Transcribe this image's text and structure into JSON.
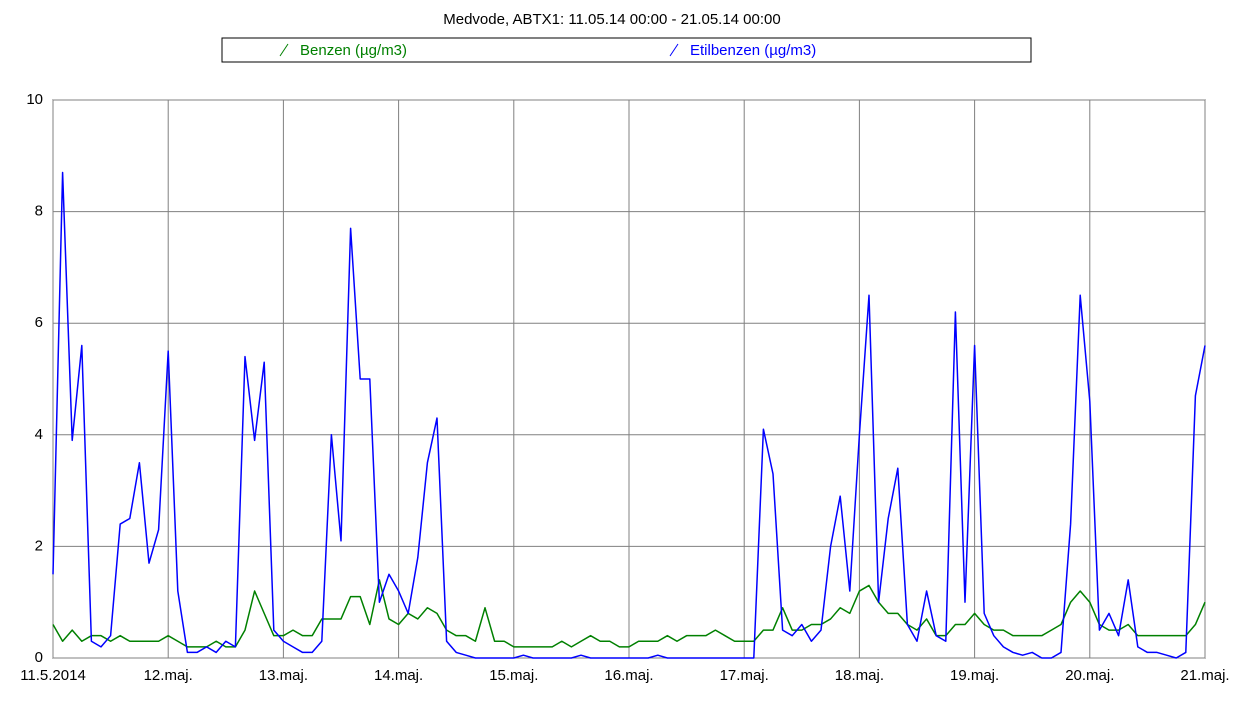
{
  "chart_data": {
    "type": "line",
    "title": "Medvode, ABTX1: 11.05.14 00:00 - 21.05.14 00:00",
    "x": [
      0,
      2,
      4,
      6,
      8,
      10,
      12,
      14,
      16,
      18,
      20,
      22,
      24,
      26,
      28,
      30,
      32,
      34,
      36,
      38,
      40,
      42,
      44,
      46,
      48,
      50,
      52,
      54,
      56,
      58,
      60,
      62,
      64,
      66,
      68,
      70,
      72,
      74,
      76,
      78,
      80,
      82,
      84,
      86,
      88,
      90,
      92,
      94,
      96,
      98,
      100,
      102,
      104,
      106,
      108,
      110,
      112,
      114,
      116,
      118,
      120,
      122,
      124,
      126,
      128,
      130,
      132,
      134,
      136,
      138,
      140,
      142,
      144,
      146,
      148,
      150,
      152,
      154,
      156,
      158,
      160,
      162,
      164,
      166,
      168,
      170,
      172,
      174,
      176,
      178,
      180,
      182,
      184,
      186,
      188,
      190,
      192,
      194,
      196,
      198,
      200,
      202,
      204,
      206,
      208,
      210,
      212,
      214,
      216,
      218,
      220,
      222,
      224,
      226,
      228,
      230,
      232,
      234,
      236,
      238,
      240
    ],
    "series": [
      {
        "name": "Benzen (µg/m3)",
        "color": "#008000",
        "values": [
          0.6,
          0.3,
          0.5,
          0.3,
          0.4,
          0.4,
          0.3,
          0.4,
          0.3,
          0.3,
          0.3,
          0.3,
          0.4,
          0.3,
          0.2,
          0.2,
          0.2,
          0.3,
          0.2,
          0.2,
          0.5,
          1.2,
          0.8,
          0.4,
          0.4,
          0.5,
          0.4,
          0.4,
          0.7,
          0.7,
          0.7,
          1.1,
          1.1,
          0.6,
          1.4,
          0.7,
          0.6,
          0.8,
          0.7,
          0.9,
          0.8,
          0.5,
          0.4,
          0.4,
          0.3,
          0.9,
          0.3,
          0.3,
          0.2,
          0.2,
          0.2,
          0.2,
          0.2,
          0.3,
          0.2,
          0.3,
          0.4,
          0.3,
          0.3,
          0.2,
          0.2,
          0.3,
          0.3,
          0.3,
          0.4,
          0.3,
          0.4,
          0.4,
          0.4,
          0.5,
          0.4,
          0.3,
          0.3,
          0.3,
          0.5,
          0.5,
          0.9,
          0.5,
          0.5,
          0.6,
          0.6,
          0.7,
          0.9,
          0.8,
          1.2,
          1.3,
          1.0,
          0.8,
          0.8,
          0.6,
          0.5,
          0.7,
          0.4,
          0.4,
          0.6,
          0.6,
          0.8,
          0.6,
          0.5,
          0.5,
          0.4,
          0.4,
          0.4,
          0.4,
          0.5,
          0.6,
          1.0,
          1.2,
          1.0,
          0.6,
          0.5,
          0.5,
          0.6,
          0.4,
          0.4,
          0.4,
          0.4,
          0.4,
          0.4,
          0.6,
          1.0
        ]
      },
      {
        "name": "Etilbenzen (µg/m3)",
        "color": "#0000ff",
        "values": [
          1.5,
          8.7,
          3.9,
          5.6,
          0.3,
          0.2,
          0.4,
          2.4,
          2.5,
          3.5,
          1.7,
          2.3,
          5.5,
          1.2,
          0.1,
          0.1,
          0.2,
          0.1,
          0.3,
          0.2,
          5.4,
          3.9,
          5.3,
          0.5,
          0.3,
          0.2,
          0.1,
          0.1,
          0.3,
          4.0,
          2.1,
          7.7,
          5.0,
          5.0,
          1.0,
          1.5,
          1.2,
          0.8,
          1.8,
          3.5,
          4.3,
          0.3,
          0.1,
          0.05,
          0,
          0,
          0,
          0,
          0,
          0.05,
          0,
          0,
          0,
          0,
          0,
          0.05,
          0,
          0,
          0,
          0,
          0,
          0,
          0,
          0.05,
          0,
          0,
          0,
          0,
          0,
          0,
          0,
          0,
          0,
          0,
          4.1,
          3.3,
          0.5,
          0.4,
          0.6,
          0.3,
          0.5,
          2.0,
          2.9,
          1.2,
          4.0,
          6.5,
          1.0,
          2.5,
          3.4,
          0.6,
          0.3,
          1.2,
          0.4,
          0.3,
          6.2,
          1.0,
          5.6,
          0.8,
          0.4,
          0.2,
          0.1,
          0.05,
          0.1,
          0,
          0,
          0.1,
          2.4,
          6.5,
          4.6,
          0.5,
          0.8,
          0.4,
          1.4,
          0.2,
          0.1,
          0.1,
          0.05,
          0,
          0.1,
          4.7,
          5.6
        ]
      }
    ],
    "xlim": [
      0,
      240
    ],
    "xticks": [
      {
        "value": 0,
        "label": "11.5.2014"
      },
      {
        "value": 24,
        "label": "12.maj."
      },
      {
        "value": 48,
        "label": "13.maj."
      },
      {
        "value": 72,
        "label": "14.maj."
      },
      {
        "value": 96,
        "label": "15.maj."
      },
      {
        "value": 120,
        "label": "16.maj."
      },
      {
        "value": 144,
        "label": "17.maj."
      },
      {
        "value": 168,
        "label": "18.maj."
      },
      {
        "value": 192,
        "label": "19.maj."
      },
      {
        "value": 216,
        "label": "20.maj."
      },
      {
        "value": 240,
        "label": "21.maj."
      }
    ],
    "ylim": [
      0,
      10
    ],
    "yticks": [
      0,
      2,
      4,
      6,
      8,
      10
    ],
    "grid": true
  }
}
